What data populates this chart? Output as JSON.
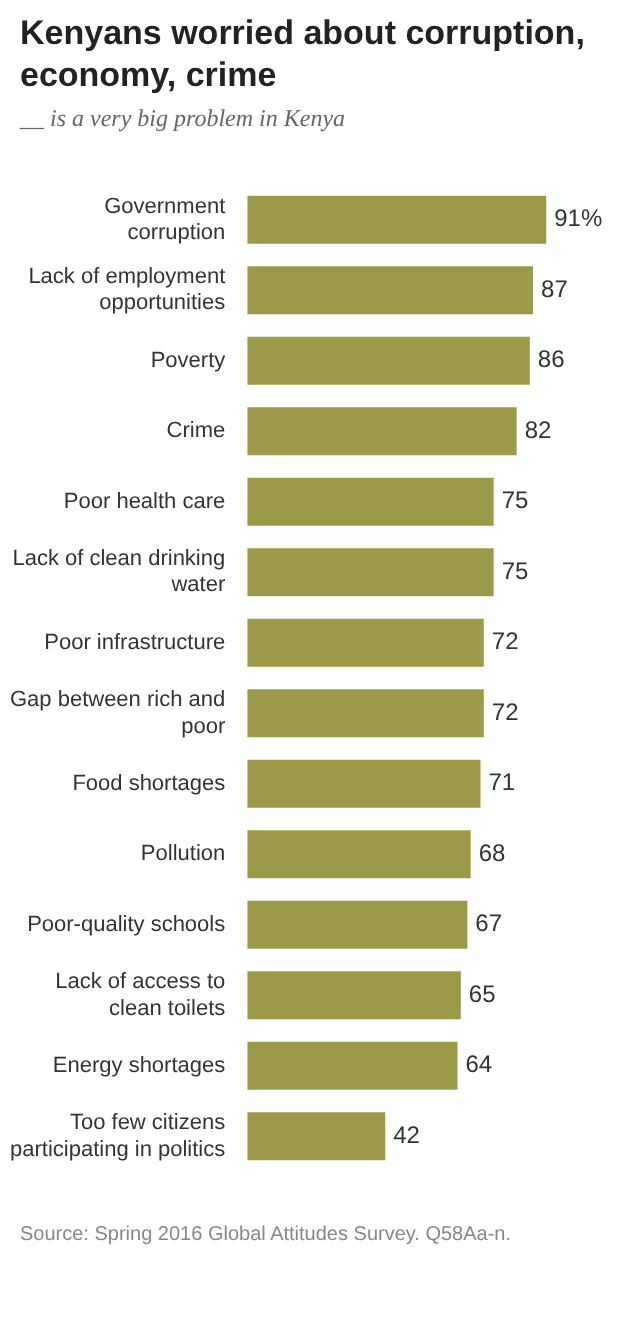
{
  "chart_data": {
    "type": "bar",
    "orientation": "horizontal",
    "title": "Kenyans worried about corruption, economy, crime",
    "subtitle": "__ is a very big problem in Kenya",
    "categories": [
      "Government corruption",
      "Lack of employment opportunities",
      "Poverty",
      "Crime",
      "Poor health care",
      "Lack of clean drinking water",
      "Poor infrastructure",
      "Gap between rich and poor",
      "Food shortages",
      "Pollution",
      "Poor-quality schools",
      "Lack of access to clean toilets",
      "Energy shortages",
      "Too few citizens participating in politics"
    ],
    "values": [
      91,
      87,
      86,
      82,
      75,
      75,
      72,
      72,
      71,
      68,
      67,
      65,
      64,
      42
    ],
    "value_labels": [
      "91%",
      "87",
      "86",
      "82",
      "75",
      "75",
      "72",
      "72",
      "71",
      "68",
      "67",
      "65",
      "64",
      "42"
    ],
    "color": "#9c9a48",
    "annotations": [
      "Source: Spring 2016 Global Attitudes Survey. Q58Aa-n."
    ]
  }
}
